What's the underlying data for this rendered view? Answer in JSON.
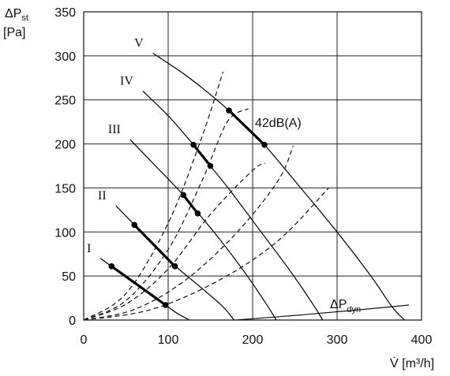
{
  "chart_data": {
    "type": "line",
    "title": "",
    "xlabel": {
      "main": "V̇ [m³/h]"
    },
    "ylabel": {
      "line1_main": "ΔP",
      "line1_sub": "st",
      "line2": "[Pa]"
    },
    "xlim": [
      0,
      400
    ],
    "ylim": [
      0,
      350
    ],
    "xticks": [
      0,
      100,
      200,
      300,
      400
    ],
    "yticks": [
      0,
      50,
      100,
      150,
      200,
      250,
      300,
      350
    ],
    "grid": true,
    "fan_curves": [
      {
        "name": "I",
        "points": [
          [
            20,
            70
          ],
          [
            60,
            42
          ],
          [
            97,
            17
          ],
          [
            110,
            8
          ],
          [
            125,
            0
          ]
        ]
      },
      {
        "name": "II",
        "points": [
          [
            38,
            130
          ],
          [
            60,
            108
          ],
          [
            90,
            78
          ],
          [
            110,
            60
          ],
          [
            140,
            36
          ],
          [
            165,
            15
          ],
          [
            178,
            0
          ]
        ]
      },
      {
        "name": "III",
        "points": [
          [
            55,
            205
          ],
          [
            80,
            180
          ],
          [
            118,
            142
          ],
          [
            135,
            122
          ],
          [
            160,
            93
          ],
          [
            190,
            55
          ],
          [
            215,
            20
          ],
          [
            228,
            0
          ]
        ]
      },
      {
        "name": "IV",
        "points": [
          [
            70,
            260
          ],
          [
            100,
            232
          ],
          [
            130,
            199
          ],
          [
            150,
            175
          ],
          [
            175,
            145
          ],
          [
            210,
            100
          ],
          [
            245,
            55
          ],
          [
            270,
            20
          ],
          [
            283,
            0
          ]
        ]
      },
      {
        "name": "V",
        "points": [
          [
            82,
            303
          ],
          [
            125,
            275
          ],
          [
            172,
            238
          ],
          [
            200,
            212
          ],
          [
            214,
            199
          ],
          [
            250,
            158
          ],
          [
            300,
            100
          ],
          [
            340,
            50
          ],
          [
            365,
            15
          ],
          [
            380,
            0
          ]
        ]
      }
    ],
    "system_curves": [
      {
        "points": [
          [
            0,
            0
          ],
          [
            50,
            30
          ],
          [
            100,
            110
          ],
          [
            140,
            208
          ],
          [
            165,
            282
          ]
        ]
      },
      {
        "points": [
          [
            0,
            0
          ],
          [
            50,
            22
          ],
          [
            100,
            80
          ],
          [
            140,
            158
          ],
          [
            170,
            225
          ],
          [
            195,
            240
          ]
        ]
      },
      {
        "points": [
          [
            0,
            0
          ],
          [
            50,
            18
          ],
          [
            100,
            58
          ],
          [
            150,
            120
          ],
          [
            200,
            170
          ],
          [
            215,
            178
          ]
        ]
      },
      {
        "points": [
          [
            0,
            0
          ],
          [
            60,
            12
          ],
          [
            120,
            45
          ],
          [
            180,
            98
          ],
          [
            230,
            158
          ],
          [
            248,
            198
          ]
        ]
      },
      {
        "points": [
          [
            0,
            0
          ],
          [
            80,
            12
          ],
          [
            160,
            45
          ],
          [
            230,
            90
          ],
          [
            290,
            150
          ]
        ]
      }
    ],
    "operating_segments": [
      {
        "curve": "I",
        "points": [
          [
            33,
            61
          ],
          [
            97,
            17
          ]
        ]
      },
      {
        "curve": "II",
        "points": [
          [
            60,
            108
          ],
          [
            108,
            61
          ]
        ]
      },
      {
        "curve": "III",
        "points": [
          [
            118,
            142
          ],
          [
            135,
            121
          ]
        ]
      },
      {
        "curve": "IV",
        "points": [
          [
            130,
            199
          ],
          [
            150,
            175
          ]
        ]
      },
      {
        "curve": "V",
        "points": [
          [
            172,
            238
          ],
          [
            214,
            199
          ]
        ]
      }
    ],
    "dynamic_pressure": {
      "label_main": "ΔP",
      "label_sub": "dyn",
      "points": [
        [
          180,
          0
        ],
        [
          260,
          6
        ],
        [
          330,
          12
        ],
        [
          385,
          17
        ]
      ]
    },
    "annotations": [
      {
        "text": "42dB(A)"
      }
    ]
  }
}
